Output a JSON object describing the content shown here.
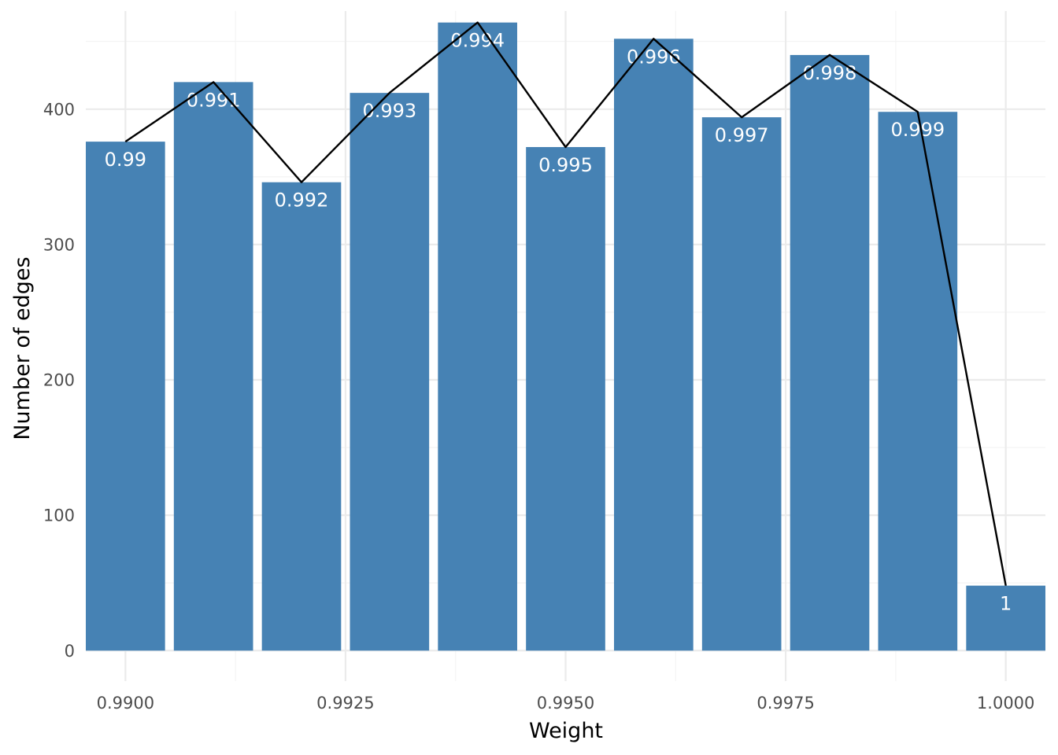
{
  "chart_data": {
    "type": "bar",
    "xlabel": "Weight",
    "ylabel": "Number of edges",
    "xlim": [
      0.98955,
      1.00045
    ],
    "ylim": [
      -22.5,
      472.5
    ],
    "x_ticks": [
      0.99,
      0.9925,
      0.995,
      0.9975,
      1.0
    ],
    "x_tick_labels": [
      "0.9900",
      "0.9925",
      "0.9950",
      "0.9975",
      "1.0000"
    ],
    "y_ticks": [
      0,
      100,
      200,
      300,
      400
    ],
    "y_tick_labels": [
      "0",
      "100",
      "200",
      "300",
      "400"
    ],
    "grid": true,
    "bar_color": "#4682b4",
    "line_color": "#000000",
    "series": [
      {
        "type": "bar",
        "x": [
          0.99,
          0.991,
          0.992,
          0.993,
          0.994,
          0.995,
          0.996,
          0.997,
          0.998,
          0.999,
          1.0
        ],
        "values": [
          376,
          420,
          346,
          412,
          464,
          372,
          452,
          394,
          440,
          398,
          48
        ],
        "labels": [
          "0.99",
          "0.991",
          "0.992",
          "0.993",
          "0.994",
          "0.995",
          "0.996",
          "0.997",
          "0.998",
          "0.999",
          "1"
        ]
      },
      {
        "type": "line",
        "x": [
          0.99,
          0.991,
          0.992,
          0.993,
          0.994,
          0.995,
          0.996,
          0.997,
          0.998,
          0.999,
          1.0
        ],
        "values": [
          376,
          420,
          346,
          412,
          464,
          372,
          452,
          394,
          440,
          398,
          48
        ]
      }
    ]
  }
}
